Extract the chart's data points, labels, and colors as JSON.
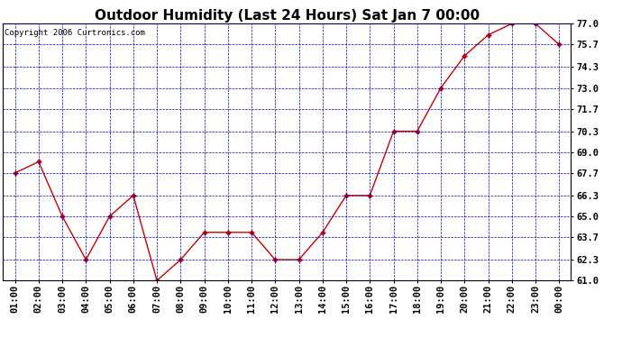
{
  "title": "Outdoor Humidity (Last 24 Hours) Sat Jan 7 00:00",
  "copyright": "Copyright 2006 Curtronics.com",
  "x_labels": [
    "01:00",
    "02:00",
    "03:00",
    "04:00",
    "05:00",
    "06:00",
    "07:00",
    "08:00",
    "09:00",
    "10:00",
    "11:00",
    "12:00",
    "13:00",
    "14:00",
    "15:00",
    "16:00",
    "17:00",
    "18:00",
    "19:00",
    "20:00",
    "21:00",
    "22:00",
    "23:00",
    "00:00"
  ],
  "y_values": [
    67.7,
    68.4,
    65.0,
    62.3,
    65.0,
    66.3,
    61.0,
    62.3,
    64.0,
    64.0,
    64.0,
    62.3,
    62.3,
    64.0,
    66.3,
    66.3,
    70.3,
    70.3,
    73.0,
    75.0,
    76.3,
    77.0,
    77.0,
    75.7
  ],
  "y_min": 61.0,
  "y_max": 77.0,
  "y_ticks": [
    61.0,
    62.3,
    63.7,
    65.0,
    66.3,
    67.7,
    69.0,
    70.3,
    71.7,
    73.0,
    74.3,
    75.7,
    77.0
  ],
  "line_color": "#cc0000",
  "marker_color": "#cc0000",
  "bg_color": "#ffffff",
  "plot_bg_color": "#ffffff",
  "grid_color": "#0000cc",
  "title_fontsize": 11,
  "tick_fontsize": 7.5,
  "copyright_fontsize": 6.5
}
